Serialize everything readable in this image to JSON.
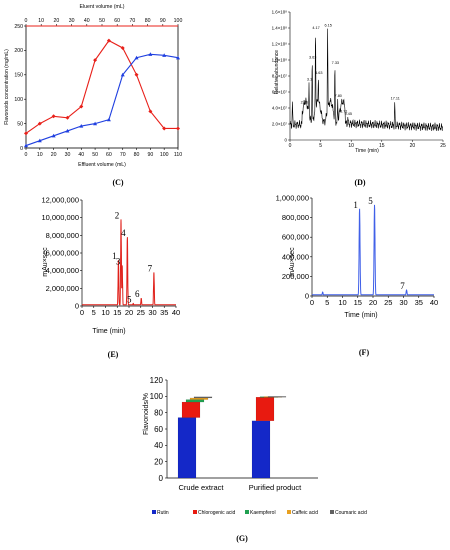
{
  "panels": {
    "C": "(C)",
    "D": "(D)",
    "E": "(E)",
    "F": "(F)",
    "G": "(G)"
  },
  "chart_data": [
    {
      "id": "C",
      "type": "line",
      "ylabel": "Flavonoids concentration (mg/mL)",
      "xlabel": "Effluent volume (mL)",
      "x2label": "Eluent volume (mL)",
      "xlim": [
        0,
        110
      ],
      "x2lim": [
        0,
        100
      ],
      "ylim": [
        0,
        250
      ],
      "xticks": [
        0,
        10,
        20,
        30,
        40,
        50,
        60,
        70,
        80,
        90,
        100,
        110
      ],
      "x2ticks": [
        0,
        10,
        20,
        30,
        40,
        50,
        60,
        70,
        80,
        90,
        100
      ],
      "yticks": [
        0,
        50,
        100,
        150,
        200,
        250
      ],
      "series": [
        {
          "color": "#e8201a",
          "marker": "diamond",
          "x": [
            0,
            10,
            20,
            30,
            40,
            50,
            60,
            70,
            80,
            90,
            100,
            110
          ],
          "y": [
            30,
            50,
            65,
            62,
            85,
            180,
            220,
            205,
            150,
            75,
            40,
            40
          ]
        },
        {
          "color": "#2040e0",
          "marker": "triangle",
          "x": [
            0,
            10,
            20,
            30,
            40,
            50,
            60,
            70,
            80,
            90,
            100,
            110
          ],
          "y": [
            5,
            15,
            25,
            35,
            45,
            50,
            58,
            150,
            185,
            192,
            190,
            185
          ]
        }
      ]
    },
    {
      "id": "D",
      "type": "line",
      "ylabel": "Relative abundance",
      "xlabel": "Time (min)",
      "xlim": [
        0,
        25
      ],
      "xticks": [
        0,
        5,
        10,
        15,
        20,
        25
      ],
      "ylim": [
        0,
        1600000
      ],
      "ytick_labels": [
        "0",
        "2.0×10⁷",
        "4.0×10⁷",
        "6.0×10⁷",
        "8.0×10⁷",
        "1.0×10⁸",
        "1.2×10⁸",
        "1.4×10⁸",
        "1.6×10⁸"
      ],
      "peaks": [
        {
          "t": 0.4,
          "h": 0.3
        },
        {
          "t": 2.25,
          "h": 0.27,
          "label": "2.25"
        },
        {
          "t": 3.1,
          "h": 0.45,
          "label": "3.1"
        },
        {
          "t": 3.63,
          "h": 0.62,
          "label": "3.63"
        },
        {
          "t": 4.17,
          "h": 0.85,
          "label": "4.17"
        },
        {
          "t": 4.63,
          "h": 0.5,
          "label": "4.63"
        },
        {
          "t": 6.15,
          "h": 0.87,
          "label": "6.15"
        },
        {
          "t": 7.33,
          "h": 0.58,
          "label": "7.33"
        },
        {
          "t": 7.8,
          "h": 0.32,
          "label": "7.80"
        },
        {
          "t": 8.71,
          "h": 0.2,
          "label": "8.71"
        },
        {
          "t": 9.45,
          "h": 0.18,
          "label": "9.45"
        },
        {
          "t": 17.11,
          "h": 0.3,
          "label": "17.11"
        }
      ]
    },
    {
      "id": "E",
      "type": "line",
      "ylabel": "mAu×sec",
      "xlabel": "Time (min)",
      "xlim": [
        0,
        40
      ],
      "xticks": [
        0,
        5,
        10,
        15,
        20,
        25,
        30,
        35,
        40
      ],
      "ylim": [
        0,
        12000000
      ],
      "ytick_labels": [
        "0",
        "2,000,000",
        "4,000,000",
        "6,000,000",
        "8,000,000",
        "10,000,000",
        "12,000,000"
      ],
      "color": "#e0201a",
      "peaks": [
        {
          "t": 15.5,
          "v": 5200000,
          "label": "1"
        },
        {
          "t": 16.6,
          "v": 9800000,
          "label": "2"
        },
        {
          "t": 17.1,
          "v": 4600000,
          "label": "3"
        },
        {
          "t": 19.3,
          "v": 7800000,
          "label": "4"
        },
        {
          "t": 21.8,
          "v": 300000,
          "label": "5"
        },
        {
          "t": 25.2,
          "v": 900000,
          "label": "6"
        },
        {
          "t": 30.6,
          "v": 3800000,
          "label": "7"
        }
      ]
    },
    {
      "id": "F",
      "type": "line",
      "ylabel": "mAu×sec",
      "xlabel": "Time (min)",
      "xlim": [
        0,
        40
      ],
      "xticks": [
        0,
        5,
        10,
        15,
        20,
        25,
        30,
        35,
        40
      ],
      "ylim": [
        0,
        1000000
      ],
      "ytick_labels": [
        "0",
        "200,000",
        "400,000",
        "600,000",
        "800,000",
        "1,000,000"
      ],
      "color": "#4060e8",
      "peaks": [
        {
          "t": 3.5,
          "v": 40000
        },
        {
          "t": 15.6,
          "v": 890000,
          "label": "1"
        },
        {
          "t": 20.5,
          "v": 930000,
          "label": "5"
        },
        {
          "t": 31.0,
          "v": 60000,
          "label": "7"
        }
      ]
    },
    {
      "id": "G",
      "type": "bar",
      "ylabel": "Flavonoids/%",
      "ylim": [
        0,
        120
      ],
      "yticks": [
        0,
        20,
        40,
        60,
        80,
        100,
        120
      ],
      "categories": [
        "Crude extract",
        "Purified product"
      ],
      "series": [
        {
          "name": "Rutin",
          "color": "#1428c8",
          "values": [
            74,
            70
          ]
        },
        {
          "name": "Chlorogenic acid",
          "color": "#e81a10",
          "values": [
            19,
            29
          ]
        },
        {
          "name": "Kaempferol",
          "color": "#20a050",
          "values": [
            3,
            0.6
          ]
        },
        {
          "name": "Caffeic acid",
          "color": "#e8a020",
          "values": [
            2,
            0.2
          ]
        },
        {
          "name": "Coumaric acid",
          "color": "#606060",
          "values": [
            1.4,
            0.1
          ]
        }
      ]
    }
  ]
}
